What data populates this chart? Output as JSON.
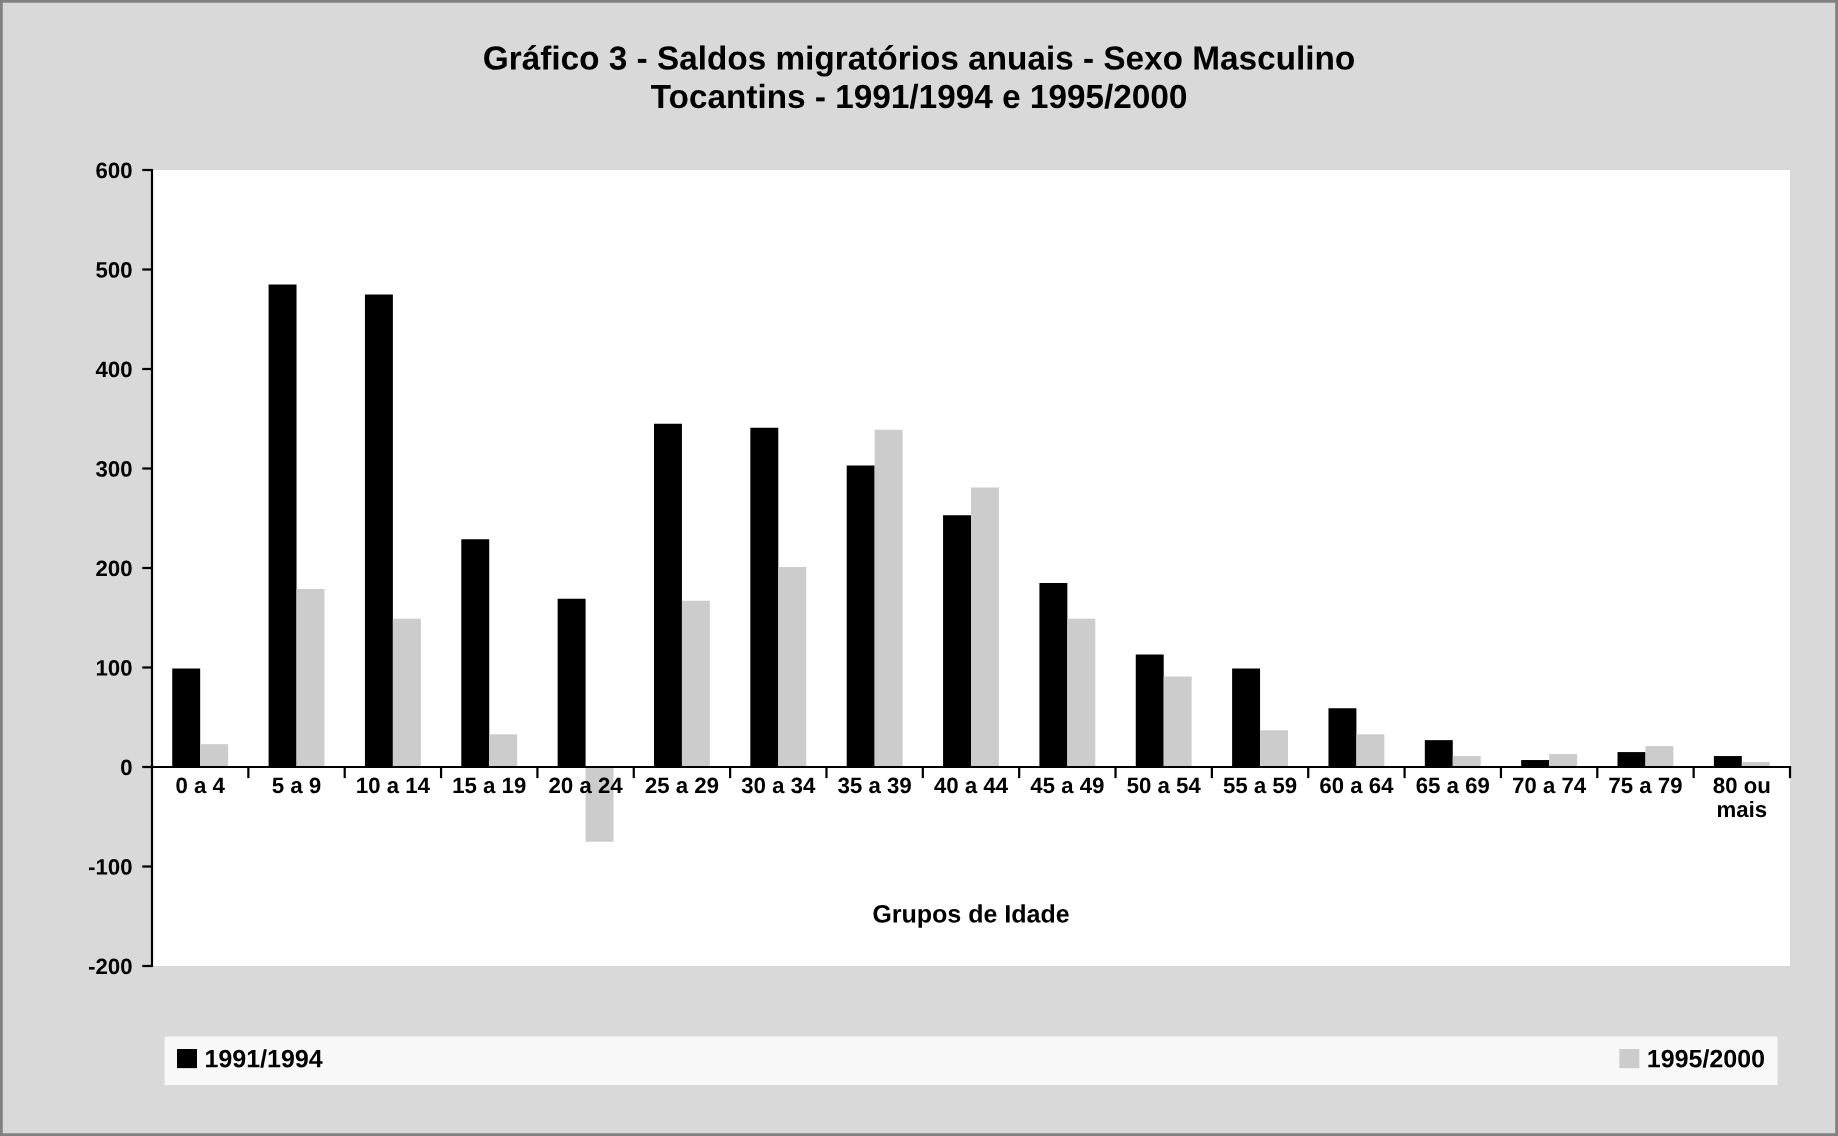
{
  "chart_data": {
    "type": "bar",
    "title": "Gráfico 3 - Saldos migratórios anuais - Sexo Masculino\nTocantins - 1991/1994 e 1995/2000",
    "xlabel": "Grupos de Idade",
    "categories": [
      "0 a 4",
      "5 a 9",
      "10 a 14",
      "15 a 19",
      "20 a 24",
      "25 a 29",
      "30 a 34",
      "35 a 39",
      "40 a 44",
      "45 a 49",
      "50 a 54",
      "55 a 59",
      "60 a 64",
      "65 a 69",
      "70 a 74",
      "75 a 79",
      "80 ou\nmais"
    ],
    "series": [
      {
        "name": "1991/1994",
        "color": "#000000",
        "values": [
          99,
          485,
          475,
          229,
          169,
          345,
          341,
          303,
          253,
          185,
          113,
          99,
          59,
          27,
          7,
          15,
          11
        ]
      },
      {
        "name": "1995/2000",
        "color": "#cccccc",
        "values": [
          23,
          179,
          149,
          33,
          -75,
          167,
          201,
          339,
          281,
          149,
          91,
          37,
          33,
          11,
          13,
          21,
          5
        ]
      }
    ],
    "ylim": [
      -200,
      600
    ],
    "yticks": [
      -200,
      -100,
      0,
      100,
      200,
      300,
      400,
      500,
      600
    ],
    "grid": false,
    "legend": "bottom"
  }
}
